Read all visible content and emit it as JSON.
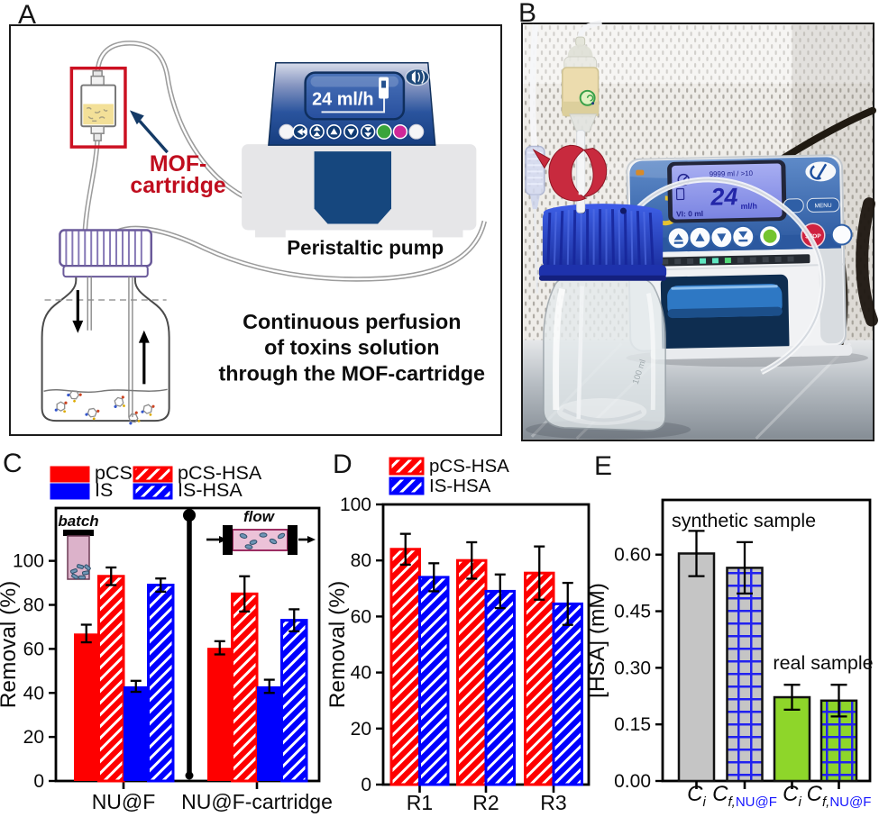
{
  "panels": {
    "a": "A",
    "b": "B",
    "c": "C",
    "d": "D",
    "e": "E"
  },
  "panel_a": {
    "mof_label_line1": "MOF-",
    "mof_label_line2": "cartridge",
    "pump_display": "24 ml/h",
    "pump_label": "Peristaltic pump",
    "caption": [
      "Continuous perfusion",
      "of toxins solution",
      "through the MOF-cartridge"
    ]
  },
  "panel_b": {
    "lcd_top": "9999 ml /  >10",
    "lcd_value": "24",
    "lcd_unit": "ml/h",
    "lcd_volume": "VI: 0 ml",
    "stop_button": "STOP",
    "menu_button": "MENU",
    "bottle_embossing": "100 ml"
  },
  "colors": {
    "red": "#fe0000",
    "blue": "#0000fe",
    "gray": "#c5c5c5",
    "green": "#8ed62a",
    "grid_blue": "#2222ef",
    "label_blue": "#1515ff",
    "dark_red": "#c00d1e",
    "navy": "#143a66"
  },
  "chart_data": [
    {
      "panel": "C",
      "type": "bar",
      "title": "",
      "xlabel": "",
      "ylabel": "Removal (%)",
      "ylim": [
        0,
        124
      ],
      "yticks": [
        0,
        20,
        40,
        60,
        80,
        100
      ],
      "grid": false,
      "legend_position": "above-left",
      "categories": [
        "NU@F",
        "NU@F-cartridge"
      ],
      "series": [
        {
          "name": "pCS",
          "style": "red-solid",
          "values": [
            67,
            60.5
          ],
          "errors": [
            4,
            3
          ]
        },
        {
          "name": "pCS-HSA",
          "style": "red-hatch",
          "values": [
            93,
            85
          ],
          "errors": [
            4,
            8
          ]
        },
        {
          "name": "IS",
          "style": "blue-solid",
          "values": [
            43,
            43
          ],
          "errors": [
            2.5,
            3
          ]
        },
        {
          "name": "IS-HSA",
          "style": "blue-hatch",
          "values": [
            89,
            73
          ],
          "errors": [
            3,
            5
          ]
        }
      ],
      "annotations": [
        {
          "text": "batch",
          "type": "schematic-batch-vial"
        },
        {
          "text": "flow",
          "type": "schematic-flow-cartridge"
        }
      ]
    },
    {
      "panel": "D",
      "type": "bar",
      "title": "",
      "xlabel": "",
      "ylabel": "Removal (%)",
      "ylim": [
        0,
        100
      ],
      "yticks": [
        0,
        20,
        40,
        60,
        80,
        100
      ],
      "grid": false,
      "legend_position": "above-left",
      "categories": [
        "R1",
        "R2",
        "R3"
      ],
      "series": [
        {
          "name": "pCS-HSA",
          "style": "red-hatch",
          "values": [
            84,
            80,
            75.5
          ],
          "errors": [
            5.5,
            6.5,
            9.5
          ]
        },
        {
          "name": "IS-HSA",
          "style": "blue-hatch",
          "values": [
            74,
            69,
            64.5
          ],
          "errors": [
            5,
            6,
            7.5
          ]
        }
      ]
    },
    {
      "panel": "E",
      "type": "bar",
      "title": "",
      "xlabel": "",
      "ylabel": "[HSA] (mM)",
      "ylim": [
        0,
        0.745
      ],
      "yticks": [
        0.0,
        0.15,
        0.3,
        0.45,
        0.6
      ],
      "grid": false,
      "bars": [
        {
          "label_main": "C",
          "label_sub": "i",
          "label_sub_blue": "",
          "value": 0.603,
          "error": 0.06,
          "style": "gray-solid"
        },
        {
          "label_main": "C",
          "label_sub": "f,",
          "label_sub_blue": "NU@F",
          "value": 0.565,
          "error": 0.068,
          "style": "gray-bluegrid"
        },
        {
          "label_main": "C",
          "label_sub": "i",
          "label_sub_blue": "",
          "value": 0.222,
          "error": 0.033,
          "style": "green-solid"
        },
        {
          "label_main": "C",
          "label_sub": "f,",
          "label_sub_blue": "NU@F",
          "value": 0.213,
          "error": 0.042,
          "style": "green-bluegrid"
        }
      ],
      "annotations": [
        {
          "text": "synthetic sample"
        },
        {
          "text": "real sample"
        }
      ]
    }
  ]
}
